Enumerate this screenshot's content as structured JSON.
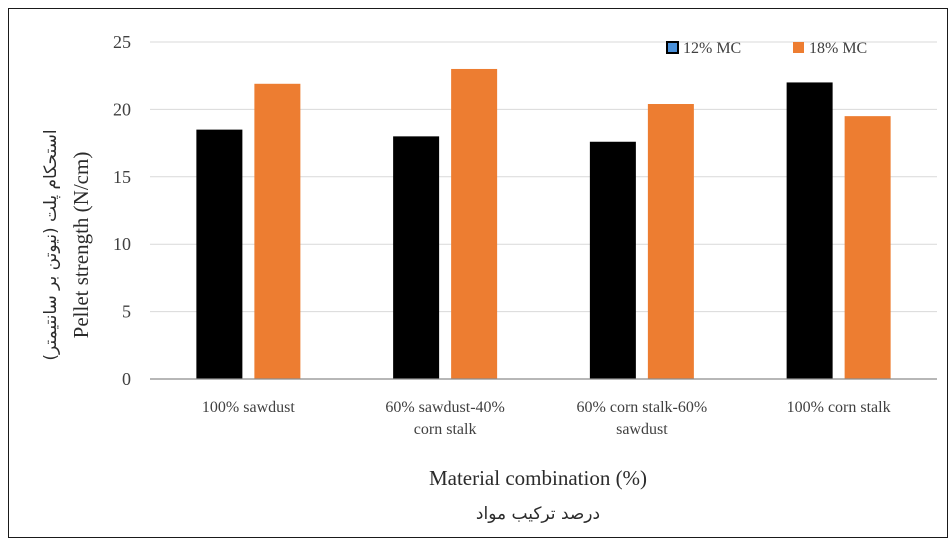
{
  "chart_data": {
    "type": "bar",
    "categories": [
      [
        "100% sawdust"
      ],
      [
        "60% sawdust-40%",
        "corn stalk"
      ],
      [
        "60% corn stalk-60%",
        "sawdust"
      ],
      [
        "100% corn stalk"
      ]
    ],
    "series": [
      {
        "name": "12% MC",
        "color": "#000000",
        "legend_color": "#4a90d9",
        "values": [
          18.5,
          18.0,
          17.6,
          22.0
        ]
      },
      {
        "name": "18% MC",
        "color": "#ed7d31",
        "legend_color": "#ed7d31",
        "values": [
          21.9,
          23.0,
          20.4,
          19.5
        ]
      }
    ],
    "ylim": [
      0,
      25
    ],
    "yticks": [
      0,
      5,
      10,
      15,
      20,
      25
    ],
    "grid": true,
    "legend_position": "top-right",
    "xlabel": "Material combination (%)",
    "xlabel_fa": "درصد ترکیب مواد",
    "ylabel": "Pellet strength (N/cm)",
    "ylabel_fa": "استحکام پلت (نیوتن بر سانتیمتر)"
  }
}
